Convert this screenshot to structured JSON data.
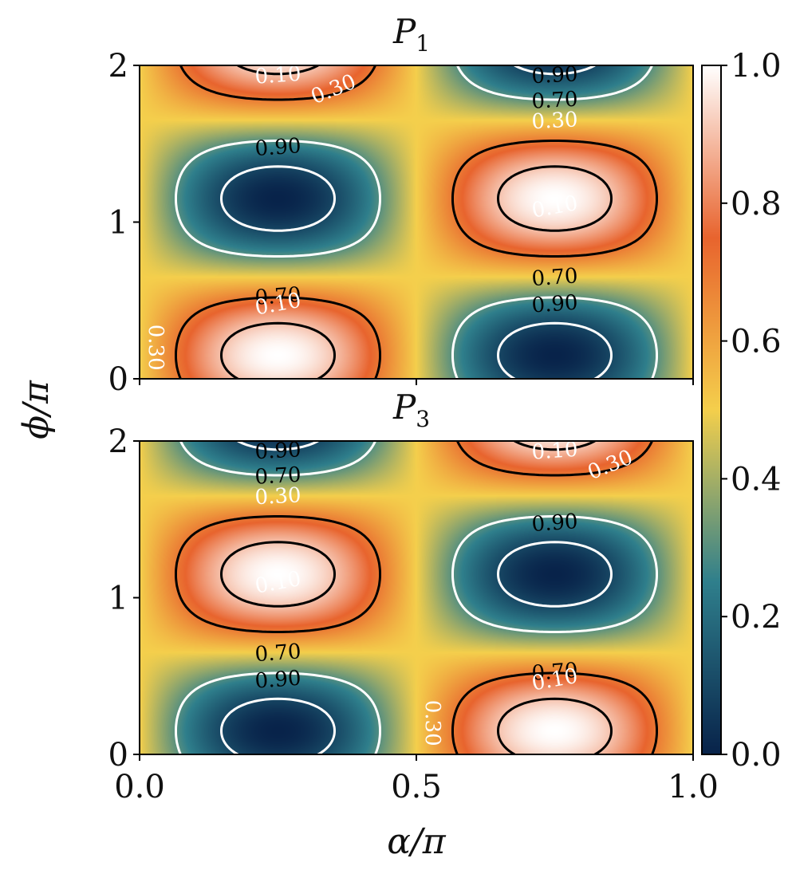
{
  "chart_data": {
    "type": "heatmap",
    "xlabel": "α/π",
    "ylabel": "ϕ/π",
    "x_ticks": [
      "0.0",
      "0.5",
      "1.0"
    ],
    "x_tick_values": [
      0,
      0.5,
      1
    ],
    "xlim": [
      0,
      1
    ],
    "ylim": [
      0,
      2
    ],
    "colorbar": {
      "range": [
        0,
        1
      ],
      "tick_labels": [
        "0.0",
        "0.2",
        "0.4",
        "0.6",
        "0.8",
        "1.0"
      ],
      "tick_values": [
        0,
        0.2,
        0.4,
        0.6,
        0.8,
        1.0
      ],
      "colors": [
        "#08234a",
        "#2f7f8c",
        "#f4cf4c",
        "#e8642e",
        "#ffffff"
      ]
    },
    "contour_levels": [
      0.1,
      0.3,
      0.7,
      0.9
    ],
    "contour_label_text": [
      "0.10",
      "0.30",
      "0.70",
      "0.90"
    ],
    "panels": [
      {
        "title": "P",
        "subscript": "1",
        "y_ticks": [
          "0",
          "1",
          "2"
        ],
        "y_tick_values": [
          0,
          1,
          2
        ],
        "phase": 0,
        "peaks": [
          [
            0.25,
            1.15
          ],
          [
            0.75,
            0.15
          ],
          [
            0.75,
            2.15
          ]
        ],
        "troughs": [
          [
            0.25,
            0.15
          ],
          [
            0.75,
            1.15
          ],
          [
            0.25,
            2.15
          ]
        ]
      },
      {
        "title": "P",
        "subscript": "3",
        "y_ticks": [
          "0",
          "1",
          "2"
        ],
        "y_tick_values": [
          0,
          1,
          2
        ],
        "phase": 1,
        "peaks": [
          [
            0.25,
            0.15
          ],
          [
            0.75,
            1.15
          ],
          [
            0.25,
            2.15
          ]
        ],
        "troughs": [
          [
            0.25,
            1.15
          ],
          [
            0.75,
            0.15
          ],
          [
            0.75,
            2.15
          ]
        ]
      }
    ]
  }
}
